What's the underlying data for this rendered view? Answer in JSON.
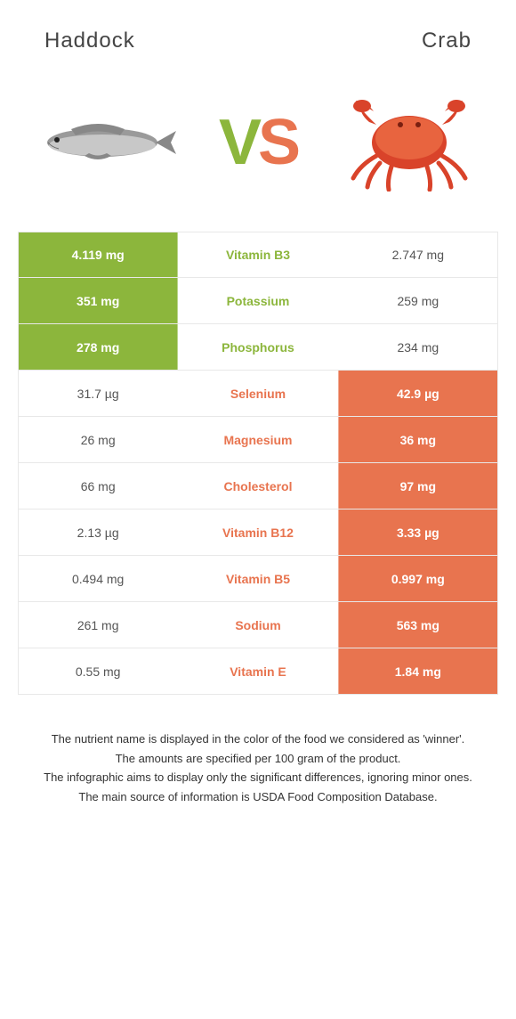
{
  "header": {
    "left_title": "Haddock",
    "right_title": "Crab"
  },
  "vs": {
    "v": "V",
    "s": "S"
  },
  "colors": {
    "green": "#8cb63c",
    "orange": "#e8744f",
    "border": "#e8e8e8",
    "text": "#333333",
    "bg": "#ffffff"
  },
  "rows": [
    {
      "left": "4.119 mg",
      "label": "Vitamin B3",
      "right": "2.747 mg",
      "winner": "left"
    },
    {
      "left": "351 mg",
      "label": "Potassium",
      "right": "259 mg",
      "winner": "left"
    },
    {
      "left": "278 mg",
      "label": "Phosphorus",
      "right": "234 mg",
      "winner": "left"
    },
    {
      "left": "31.7 µg",
      "label": "Selenium",
      "right": "42.9 µg",
      "winner": "right"
    },
    {
      "left": "26 mg",
      "label": "Magnesium",
      "right": "36 mg",
      "winner": "right"
    },
    {
      "left": "66 mg",
      "label": "Cholesterol",
      "right": "97 mg",
      "winner": "right"
    },
    {
      "left": "2.13 µg",
      "label": "Vitamin B12",
      "right": "3.33 µg",
      "winner": "right"
    },
    {
      "left": "0.494 mg",
      "label": "Vitamin B5",
      "right": "0.997 mg",
      "winner": "right"
    },
    {
      "left": "261 mg",
      "label": "Sodium",
      "right": "563 mg",
      "winner": "right"
    },
    {
      "left": "0.55 mg",
      "label": "Vitamin E",
      "right": "1.84 mg",
      "winner": "right"
    }
  ],
  "footer": {
    "line1": "The nutrient name is displayed in the color of the food we considered as 'winner'.",
    "line2": "The amounts are specified per 100 gram of the product.",
    "line3": "The infographic aims to display only the significant differences, ignoring minor ones.",
    "line4": "The main source of information is USDA Food Composition Database."
  }
}
